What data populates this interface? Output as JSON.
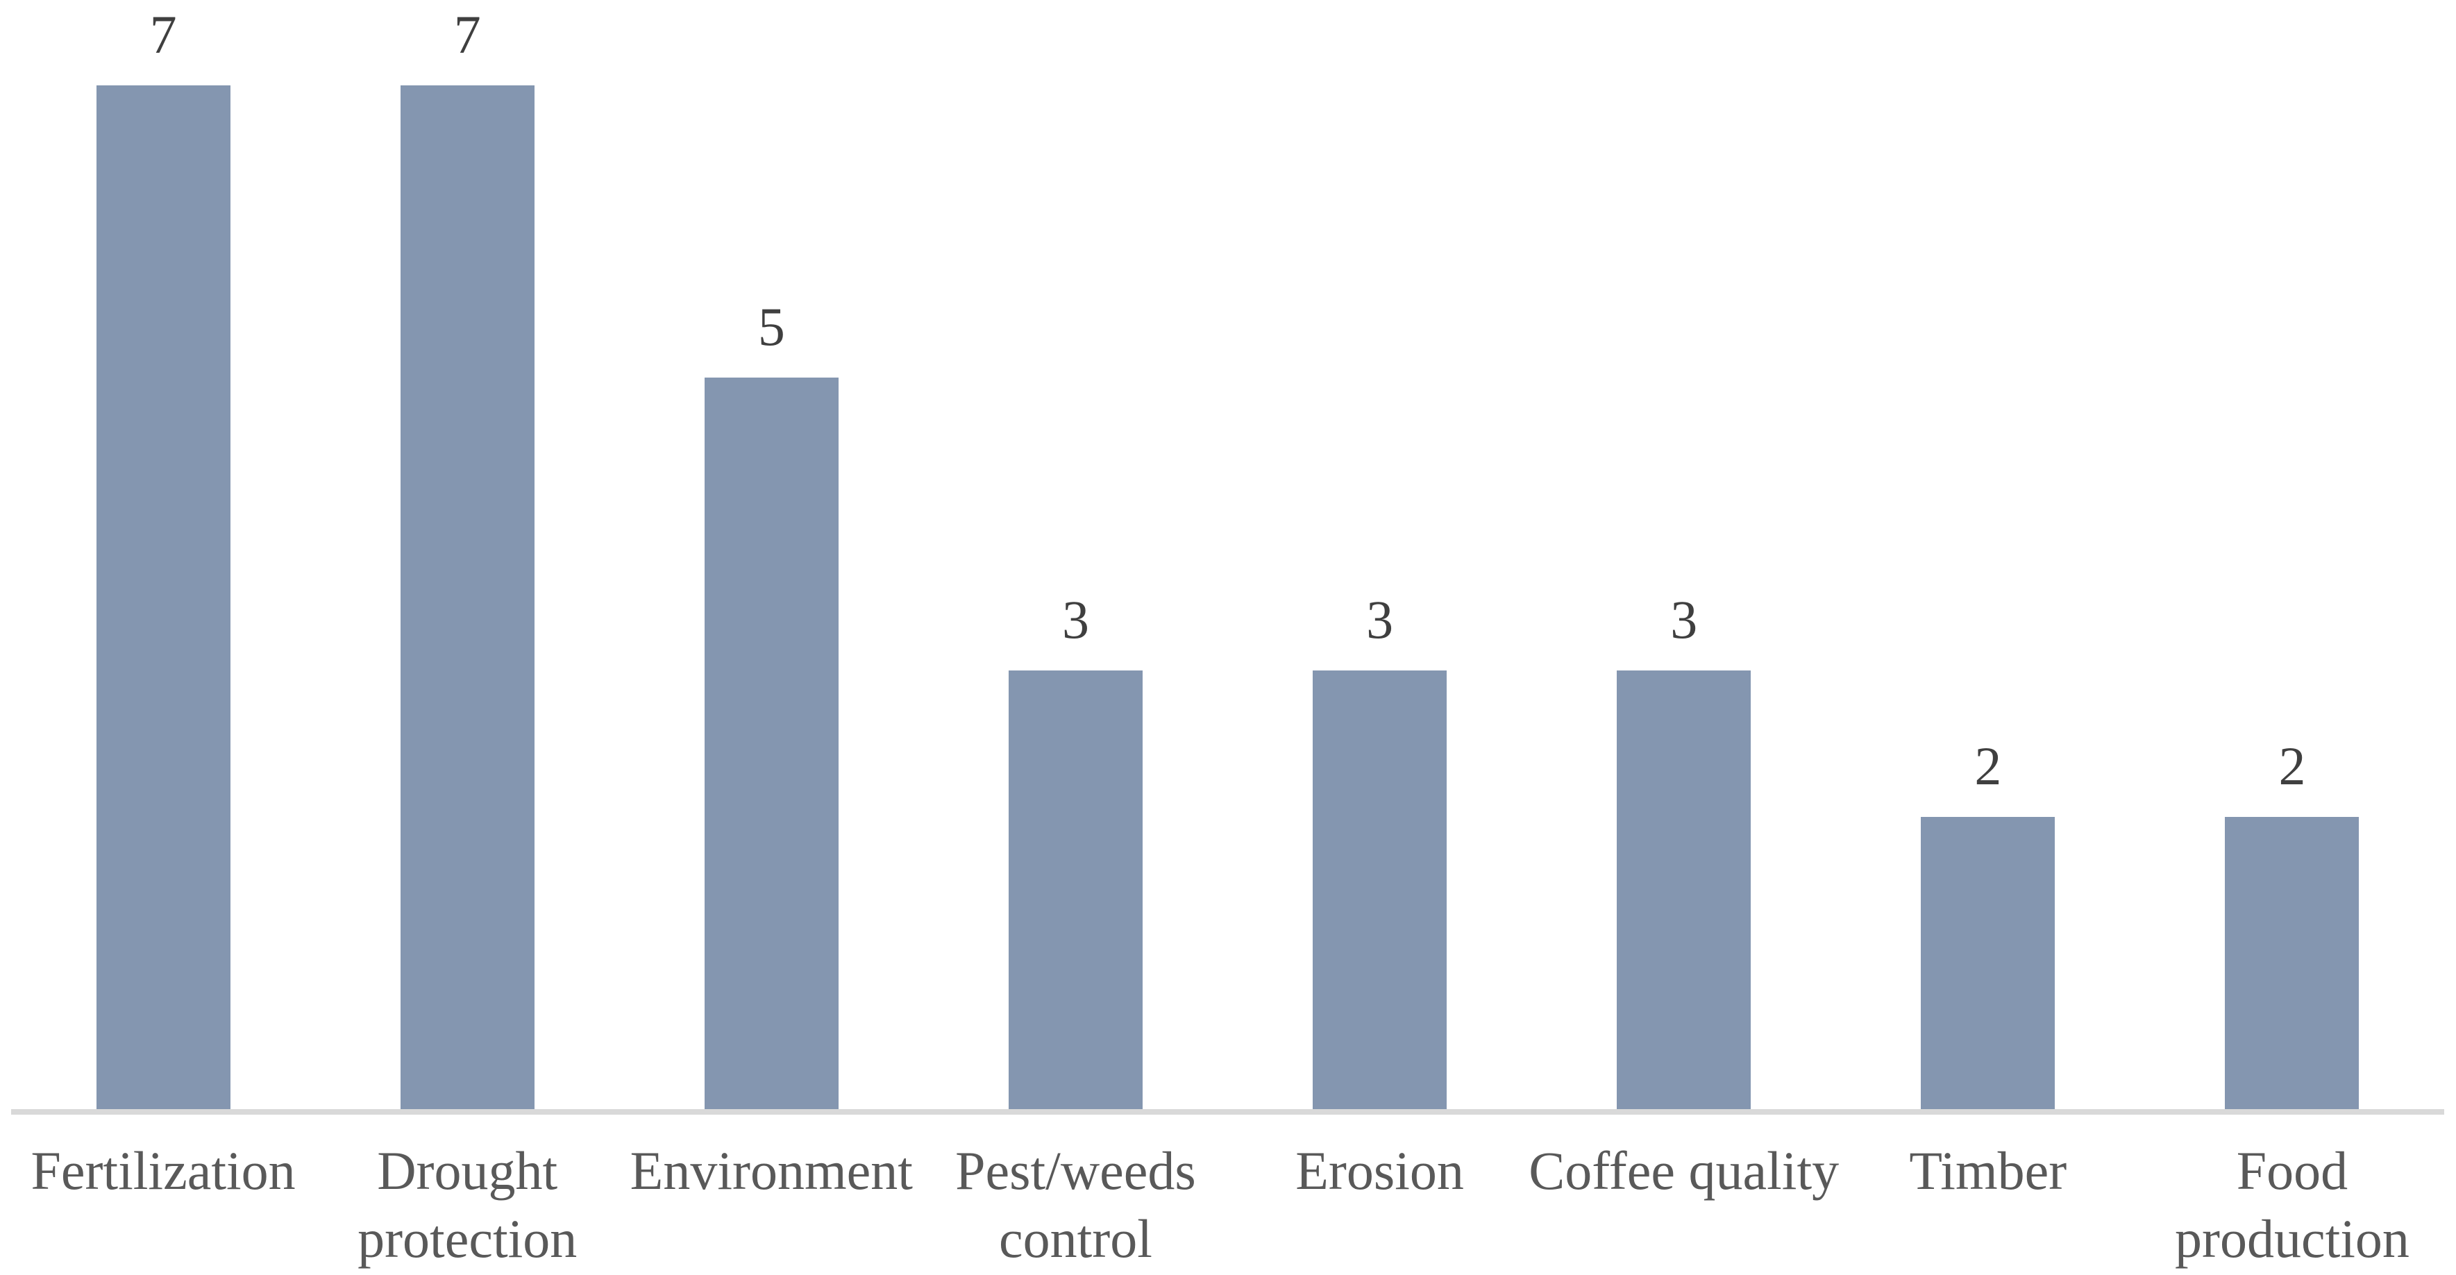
{
  "chart_data": {
    "type": "bar",
    "categories": [
      "Fertilization",
      "Drought protection",
      "Environment",
      "Pest/weeds control",
      "Erosion",
      "Coffee quality",
      "Timber",
      "Food production"
    ],
    "categories_display": [
      "Fertilization",
      "Drought\nprotection",
      "Environment",
      "Pest/weeds\ncontrol",
      "Erosion",
      "Coffee quality",
      "Timber",
      "Food\nproduction"
    ],
    "values": [
      7,
      7,
      5,
      3,
      3,
      3,
      2,
      2
    ],
    "title": "",
    "xlabel": "",
    "ylabel": "",
    "ylim": [
      0,
      7
    ],
    "grid": false,
    "legend": false,
    "data_labels": true,
    "colors": {
      "bar": "#8496B0",
      "baseline": "#D9D9D9",
      "value_label_text": "#3F3F3F",
      "category_label_text": "#595959",
      "background": "#FFFFFF"
    }
  }
}
